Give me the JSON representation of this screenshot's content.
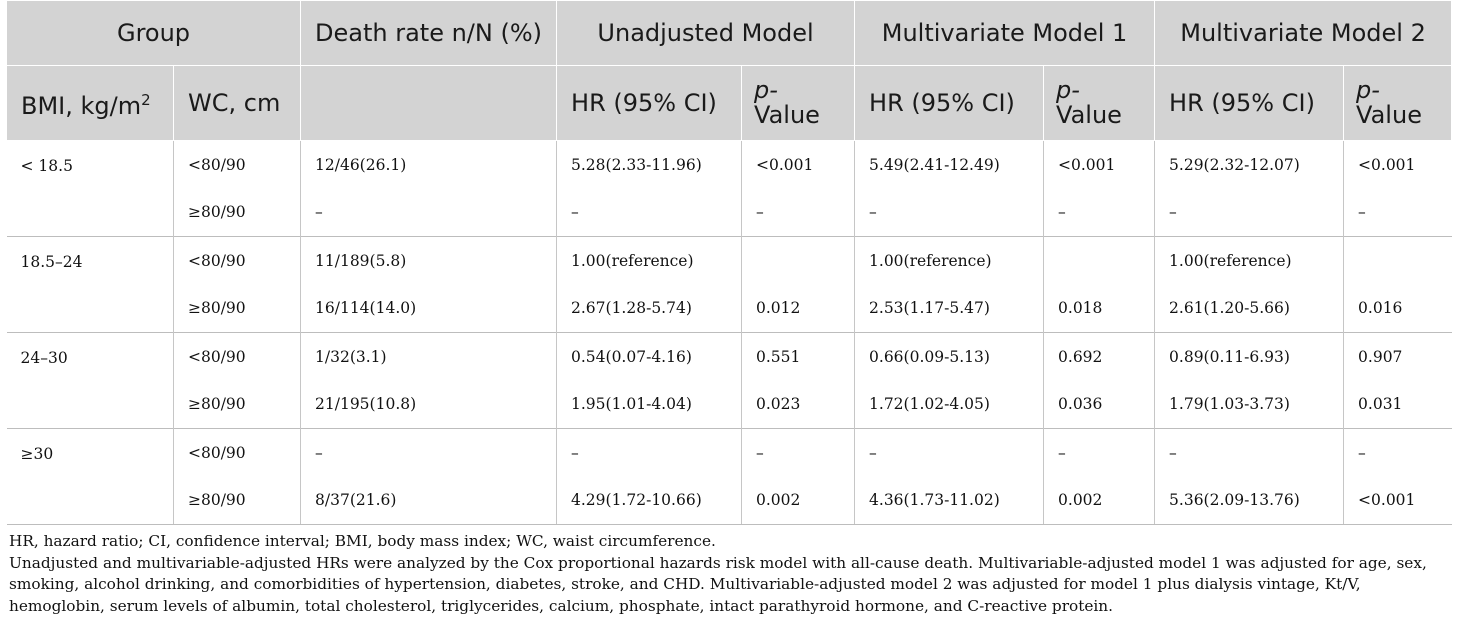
{
  "header": {
    "row1": {
      "group": "Group",
      "death_rate": "Death rate n/N (%)",
      "unadjusted": "Unadjusted Model",
      "mv1": "Multivariate Model 1",
      "mv2": "Multivariate Model 2"
    },
    "row2": {
      "bmi_text": "BMI, kg/m",
      "bmi_sup": "2",
      "wc": "WC, cm",
      "hr": "HR (95% CI)",
      "p_top": "p-",
      "p_bottom": "Value"
    }
  },
  "groups": [
    {
      "bmi": "< 18.5",
      "rows": [
        {
          "wc": "<80/90",
          "death": "12/46(26.1)",
          "hr0": "5.28(2.33-11.96)",
          "p0": "<0.001",
          "hr1": "5.49(2.41-12.49)",
          "p1": "<0.001",
          "hr2": "5.29(2.32-12.07)",
          "p2": "<0.001"
        },
        {
          "wc": "≥80/90",
          "death": "–",
          "hr0": "–",
          "p0": "–",
          "hr1": "–",
          "p1": "–",
          "hr2": "–",
          "p2": "–"
        }
      ]
    },
    {
      "bmi": "18.5–24",
      "rows": [
        {
          "wc": "<80/90",
          "death": "11/189(5.8)",
          "hr0": "1.00(reference)",
          "p0": "",
          "hr1": "1.00(reference)",
          "p1": "",
          "hr2": "1.00(reference)",
          "p2": ""
        },
        {
          "wc": "≥80/90",
          "death": "16/114(14.0)",
          "hr0": "2.67(1.28-5.74)",
          "p0": "0.012",
          "hr1": "2.53(1.17-5.47)",
          "p1": "0.018",
          "hr2": "2.61(1.20-5.66)",
          "p2": "0.016"
        }
      ]
    },
    {
      "bmi": "24–30",
      "rows": [
        {
          "wc": "<80/90",
          "death": "1/32(3.1)",
          "hr0": "0.54(0.07-4.16)",
          "p0": "0.551",
          "hr1": "0.66(0.09-5.13)",
          "p1": "0.692",
          "hr2": "0.89(0.11-6.93)",
          "p2": "0.907"
        },
        {
          "wc": "≥80/90",
          "death": "21/195(10.8)",
          "hr0": "1.95(1.01-4.04)",
          "p0": "0.023",
          "hr1": "1.72(1.02-4.05)",
          "p1": "0.036",
          "hr2": "1.79(1.03-3.73)",
          "p2": "0.031"
        }
      ]
    },
    {
      "bmi": "≥30",
      "rows": [
        {
          "wc": "<80/90",
          "death": "–",
          "hr0": "–",
          "p0": "–",
          "hr1": "–",
          "p1": "–",
          "hr2": "–",
          "p2": "–"
        },
        {
          "wc": "≥80/90",
          "death": "8/37(21.6)",
          "hr0": "4.29(1.72-10.66)",
          "p0": "0.002",
          "hr1": "4.36(1.73-11.02)",
          "p1": "0.002",
          "hr2": "5.36(2.09-13.76)",
          "p2": "<0.001"
        }
      ]
    }
  ],
  "footnotes": {
    "abbrev": "HR, hazard ratio; CI, confidence interval; BMI, body mass index; WC, waist circumference.",
    "method": "Unadjusted and multivariable-adjusted HRs were analyzed by the Cox proportional hazards risk model with all-cause death. Multivariable-adjusted model 1 was adjusted for age, sex, smoking, alcohol drinking, and comorbidities of hypertension, diabetes, stroke, and CHD. Multivariable-adjusted model 2 was adjusted for model 1 plus dialysis vintage, Kt/V, hemoglobin, serum levels of albumin, total cholesterol, triglycerides, calcium, phosphate, intact parathyroid hormone, and C-reactive protein."
  }
}
